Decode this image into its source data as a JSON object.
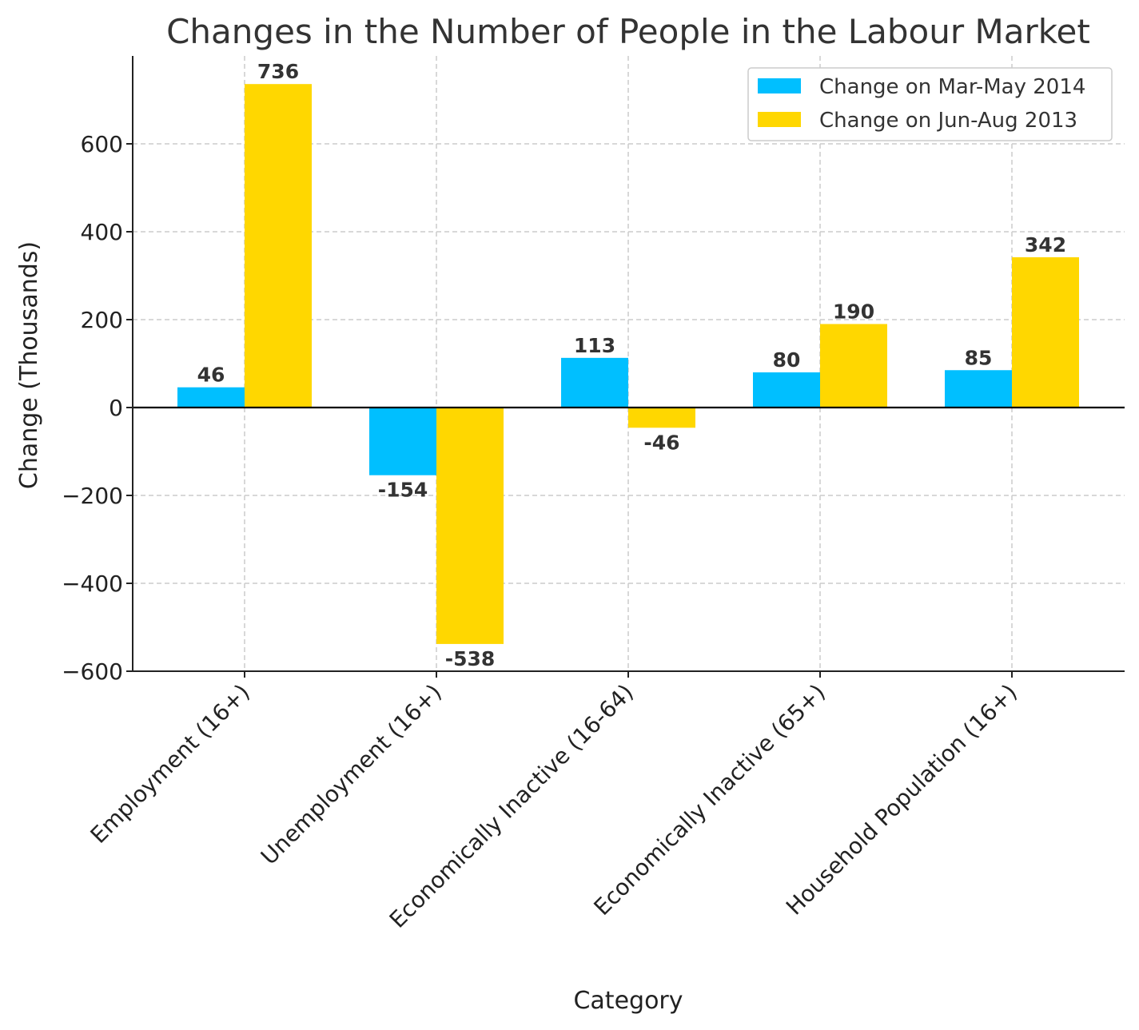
{
  "chart_data": {
    "type": "bar",
    "title": "Changes in the Number of People in the Labour Market",
    "xlabel": "Category",
    "ylabel": "Change (Thousands)",
    "categories": [
      "Employment (16+)",
      "Unemployment (16+)",
      "Economically Inactive (16-64)",
      "Economically Inactive (65+)",
      "Household Population (16+)"
    ],
    "series": [
      {
        "name": "Change on Mar-May 2014",
        "color": "#00bfff",
        "values": [
          46,
          -154,
          113,
          80,
          85
        ]
      },
      {
        "name": "Change on Jun-Aug 2013",
        "color": "#ffd700",
        "values": [
          736,
          -538,
          -46,
          190,
          342
        ]
      }
    ],
    "ylim": [
      -600,
      800
    ],
    "yticks": [
      -600,
      -400,
      -200,
      0,
      200,
      400,
      600
    ],
    "ytick_labels": [
      "−600",
      "−400",
      "−200",
      "0",
      "200",
      "400",
      "600"
    ],
    "grid": true,
    "legend_position": "top-right"
  }
}
